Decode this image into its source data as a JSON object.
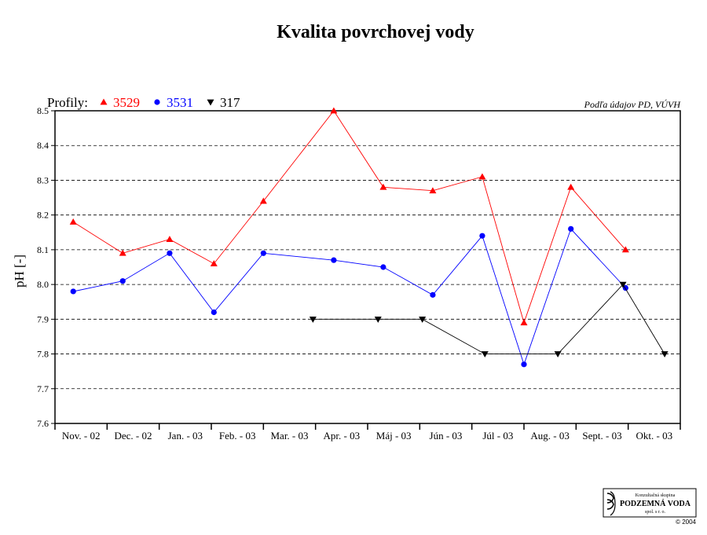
{
  "chart_data": {
    "type": "line",
    "title": "Kvalita povrchovej vody",
    "ylabel": "pH [-]",
    "xlabel": "",
    "ylim": [
      7.6,
      8.5
    ],
    "yticks": [
      "7.6",
      "7.7",
      "7.8",
      "7.9",
      "8.0",
      "8.1",
      "8.2",
      "8.3",
      "8.4",
      "8.5"
    ],
    "grid": true,
    "legend_title": "Profily:",
    "legend_placement": "top-left",
    "source_note": "Podľa údajov PD, VÚVH",
    "categories": [
      "Nov. - 02",
      "Dec. - 02",
      "Jan. - 03",
      "Feb. - 03",
      "Mar. - 03",
      "Apr. - 03",
      "Máj - 03",
      "Jún - 03",
      "Júl - 03",
      "Aug. - 03",
      "Sept. - 03",
      "Okt. - 03"
    ],
    "series": [
      {
        "name": "3529",
        "color": "#ff0000",
        "marker": "triangle-up",
        "points": [
          {
            "x": 0.35,
            "y": 8.18
          },
          {
            "x": 1.3,
            "y": 8.09
          },
          {
            "x": 2.2,
            "y": 8.13
          },
          {
            "x": 3.05,
            "y": 8.06
          },
          {
            "x": 4.0,
            "y": 8.24
          },
          {
            "x": 5.35,
            "y": 8.5
          },
          {
            "x": 6.3,
            "y": 8.28
          },
          {
            "x": 7.25,
            "y": 8.27
          },
          {
            "x": 8.2,
            "y": 8.31
          },
          {
            "x": 9.0,
            "y": 7.89
          },
          {
            "x": 9.9,
            "y": 8.28
          },
          {
            "x": 10.95,
            "y": 8.1
          }
        ]
      },
      {
        "name": "3531",
        "color": "#0000ff",
        "marker": "circle",
        "points": [
          {
            "x": 0.35,
            "y": 7.98
          },
          {
            "x": 1.3,
            "y": 8.01
          },
          {
            "x": 2.2,
            "y": 8.09
          },
          {
            "x": 3.05,
            "y": 7.92
          },
          {
            "x": 4.0,
            "y": 8.09
          },
          {
            "x": 5.35,
            "y": 8.07
          },
          {
            "x": 6.3,
            "y": 8.05
          },
          {
            "x": 7.25,
            "y": 7.97
          },
          {
            "x": 8.2,
            "y": 8.14
          },
          {
            "x": 9.0,
            "y": 7.77
          },
          {
            "x": 9.9,
            "y": 8.16
          },
          {
            "x": 10.95,
            "y": 7.99
          }
        ]
      },
      {
        "name": "317",
        "color": "#000000",
        "marker": "triangle-down",
        "points": [
          {
            "x": 4.95,
            "y": 7.9
          },
          {
            "x": 6.2,
            "y": 7.9
          },
          {
            "x": 7.05,
            "y": 7.9
          },
          {
            "x": 8.25,
            "y": 7.8
          },
          {
            "x": 9.65,
            "y": 7.8
          },
          {
            "x": 10.9,
            "y": 8.0
          },
          {
            "x": 11.7,
            "y": 7.8
          }
        ]
      }
    ]
  },
  "logo": {
    "line1": "Konzultačná skupina",
    "line2": "PODZEMNÁ VODA",
    "line3": "spol. s r. o."
  },
  "copyright": "© 2004"
}
